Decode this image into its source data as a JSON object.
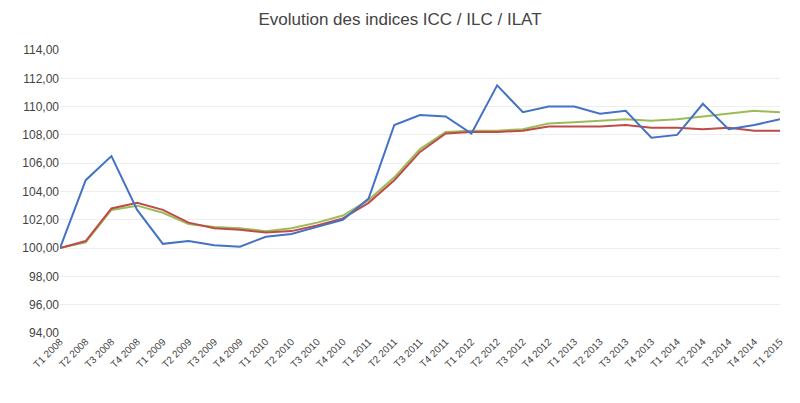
{
  "chart_data": {
    "type": "line",
    "title": "Evolution des indices ICC / ILC / ILAT",
    "categories": [
      "T1 2008",
      "T2 2008",
      "T3 2008",
      "T4 2008",
      "T1 2009",
      "T2 2009",
      "T3 2009",
      "T4 2009",
      "T1 2010",
      "T2 2010",
      "T3 2010",
      "T4 2010",
      "T1 2011",
      "T2 2011",
      "T3 2011",
      "T4 2011",
      "T1 2012",
      "T2 2012",
      "T3 2012",
      "T4 2012",
      "T1 2013",
      "T2 2013",
      "T3 2013",
      "T4 2013",
      "T1 2014",
      "T2 2014",
      "T3 2014",
      "T4 2014",
      "T1 2015"
    ],
    "series": [
      {
        "color": "#9BBB59",
        "values": [
          100.0,
          100.4,
          102.7,
          103.0,
          102.5,
          101.7,
          101.5,
          101.4,
          101.2,
          101.4,
          101.8,
          102.3,
          103.4,
          105.0,
          107.0,
          108.2,
          108.3,
          108.3,
          108.4,
          108.8,
          108.9,
          109.0,
          109.1,
          109.0,
          109.1,
          109.3,
          109.5,
          109.7,
          109.6
        ]
      },
      {
        "color": "#BE4B48",
        "values": [
          100.0,
          100.5,
          102.8,
          103.2,
          102.7,
          101.8,
          101.4,
          101.3,
          101.1,
          101.2,
          101.6,
          102.1,
          103.2,
          104.8,
          106.8,
          108.1,
          108.2,
          108.2,
          108.3,
          108.6,
          108.6,
          108.6,
          108.7,
          108.5,
          108.5,
          108.4,
          108.5,
          108.3,
          108.3
        ]
      },
      {
        "color": "#4472C4",
        "values": [
          100.0,
          104.8,
          106.5,
          102.7,
          100.3,
          100.5,
          100.2,
          100.1,
          100.8,
          101.0,
          101.5,
          102.0,
          103.5,
          108.7,
          109.4,
          109.3,
          108.1,
          111.5,
          109.6,
          110.0,
          110.0,
          109.5,
          109.7,
          107.8,
          108.0,
          110.2,
          108.4,
          108.7,
          109.1
        ]
      }
    ],
    "ylim": [
      94.0,
      114.0
    ],
    "yticks": [
      {
        "value": 94,
        "label": "94,00"
      },
      {
        "value": 96,
        "label": "96,00"
      },
      {
        "value": 98,
        "label": "98,00"
      },
      {
        "value": 100,
        "label": "100,00"
      },
      {
        "value": 102,
        "label": "102,00"
      },
      {
        "value": 104,
        "label": "104,00"
      },
      {
        "value": 106,
        "label": "106,00"
      },
      {
        "value": 108,
        "label": "108,00"
      },
      {
        "value": 110,
        "label": "110,00"
      },
      {
        "value": 112,
        "label": "112,00"
      },
      {
        "value": 114,
        "label": "114,00"
      }
    ],
    "grid": true
  }
}
